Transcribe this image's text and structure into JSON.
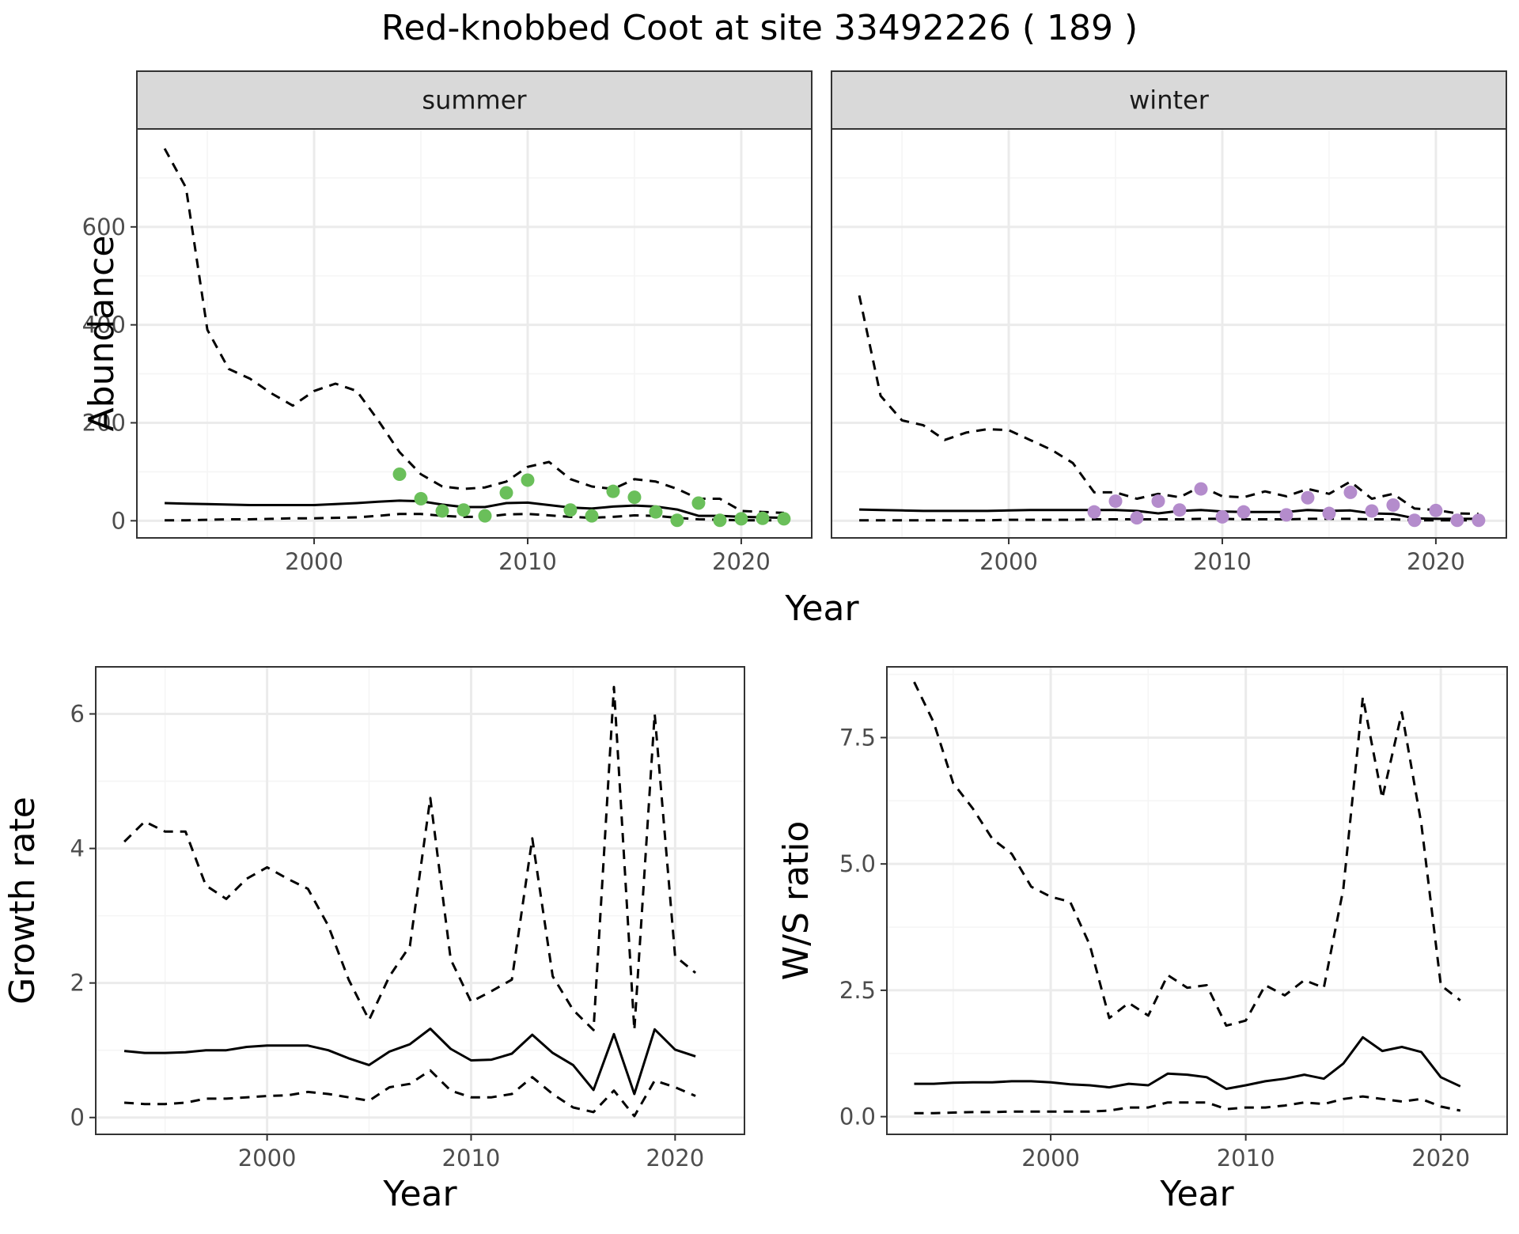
{
  "title": "Red-knobbed Coot at site 33492226 ( 189 )",
  "colors": {
    "summer_points": "#6abf5a",
    "winter_points": "#b48ccc",
    "lines": "#000000",
    "grid_major": "#ebebeb",
    "grid_minor": "#f5f5f5",
    "strip_fill": "#d9d9d9"
  },
  "chart_data": [
    {
      "type": "line",
      "panel": "summer",
      "strip_label": "summer",
      "ylabel": "Abundance",
      "xlabel": "Year",
      "xlim": [
        1991.7,
        2023.3
      ],
      "ylim": [
        -35,
        800
      ],
      "x_ticks": [
        2000,
        2010,
        2020
      ],
      "x_tick_labels": [
        "2000",
        "2010",
        "2020"
      ],
      "y_ticks": [
        0,
        200,
        400,
        600
      ],
      "y_tick_labels": [
        "0",
        "200",
        "400",
        "600"
      ],
      "grid": true,
      "series": [
        {
          "role": "estimate",
          "style": "solid",
          "x": [
            1993,
            1994,
            1995,
            1996,
            1997,
            1998,
            1999,
            2000,
            2001,
            2002,
            2003,
            2004,
            2005,
            2006,
            2007,
            2008,
            2009,
            2010,
            2011,
            2012,
            2013,
            2014,
            2015,
            2016,
            2017,
            2018,
            2019,
            2020,
            2021,
            2022
          ],
          "y": [
            36,
            35,
            34,
            33,
            32,
            32,
            32,
            32,
            34,
            36,
            39,
            41,
            40,
            33,
            28,
            28,
            36,
            37,
            32,
            27,
            25,
            29,
            31,
            29,
            23,
            10,
            10,
            8,
            7,
            6
          ]
        },
        {
          "role": "upper",
          "style": "dashed",
          "x": [
            1993,
            1994,
            1995,
            1996,
            1997,
            1998,
            1999,
            2000,
            2001,
            2002,
            2003,
            2004,
            2005,
            2006,
            2007,
            2008,
            2009,
            2010,
            2011,
            2012,
            2013,
            2014,
            2015,
            2016,
            2017,
            2018,
            2019,
            2020,
            2021,
            2022
          ],
          "y": [
            760,
            680,
            390,
            310,
            290,
            260,
            235,
            265,
            280,
            265,
            205,
            140,
            95,
            70,
            65,
            68,
            80,
            110,
            120,
            85,
            70,
            65,
            85,
            80,
            65,
            45,
            45,
            20,
            18,
            16
          ]
        },
        {
          "role": "lower",
          "style": "dashed",
          "x": [
            1993,
            1994,
            1995,
            1996,
            1997,
            1998,
            1999,
            2000,
            2001,
            2002,
            2003,
            2004,
            2005,
            2006,
            2007,
            2008,
            2009,
            2010,
            2011,
            2012,
            2013,
            2014,
            2015,
            2016,
            2017,
            2018,
            2019,
            2020,
            2021,
            2022
          ],
          "y": [
            1,
            1,
            2,
            3,
            3,
            4,
            5,
            5,
            6,
            7,
            10,
            14,
            14,
            10,
            8,
            8,
            13,
            14,
            11,
            8,
            6,
            8,
            11,
            10,
            6,
            3,
            2,
            1,
            1,
            1
          ]
        },
        {
          "role": "counts",
          "style": "points",
          "x": [
            2004,
            2005,
            2006,
            2007,
            2008,
            2009,
            2010,
            2012,
            2013,
            2014,
            2015,
            2016,
            2017,
            2018,
            2019,
            2020,
            2021,
            2022
          ],
          "y": [
            95,
            45,
            20,
            22,
            10,
            57,
            83,
            22,
            10,
            60,
            48,
            18,
            1,
            36,
            1,
            4,
            5,
            4
          ]
        }
      ]
    },
    {
      "type": "line",
      "panel": "winter",
      "strip_label": "winter",
      "ylabel": "",
      "xlabel": "Year",
      "xlim": [
        1991.7,
        2023.3
      ],
      "ylim": [
        -35,
        800
      ],
      "x_ticks": [
        2000,
        2010,
        2020
      ],
      "x_tick_labels": [
        "2000",
        "2010",
        "2020"
      ],
      "grid": true,
      "series": [
        {
          "role": "estimate",
          "style": "solid",
          "x": [
            1993,
            1994,
            1995,
            1996,
            1997,
            1998,
            1999,
            2000,
            2001,
            2002,
            2003,
            2004,
            2005,
            2006,
            2007,
            2008,
            2009,
            2010,
            2011,
            2012,
            2013,
            2014,
            2015,
            2016,
            2017,
            2018,
            2019,
            2020,
            2021,
            2022
          ],
          "y": [
            23,
            22,
            21,
            20,
            20,
            20,
            20,
            21,
            22,
            22,
            22,
            22,
            22,
            20,
            15,
            20,
            22,
            19,
            18,
            18,
            18,
            22,
            20,
            21,
            15,
            14,
            5,
            4,
            4,
            4
          ]
        },
        {
          "role": "upper",
          "style": "dashed",
          "x": [
            1993,
            1994,
            1995,
            1996,
            1997,
            1998,
            1999,
            2000,
            2001,
            2002,
            2003,
            2004,
            2005,
            2006,
            2007,
            2008,
            2009,
            2010,
            2011,
            2012,
            2013,
            2014,
            2015,
            2016,
            2017,
            2018,
            2019,
            2020,
            2021,
            2022
          ],
          "y": [
            460,
            255,
            205,
            195,
            165,
            180,
            187,
            185,
            165,
            145,
            118,
            58,
            58,
            45,
            55,
            48,
            70,
            50,
            48,
            60,
            50,
            65,
            55,
            80,
            45,
            55,
            25,
            22,
            15,
            14
          ]
        },
        {
          "role": "lower",
          "style": "dashed",
          "x": [
            1993,
            1994,
            1995,
            1996,
            1997,
            1998,
            1999,
            2000,
            2001,
            2002,
            2003,
            2004,
            2005,
            2006,
            2007,
            2008,
            2009,
            2010,
            2011,
            2012,
            2013,
            2014,
            2015,
            2016,
            2017,
            2018,
            2019,
            2020,
            2021,
            2022
          ],
          "y": [
            1,
            1,
            1,
            1,
            1,
            1,
            1,
            2,
            2,
            2,
            2,
            3,
            3,
            3,
            3,
            3,
            4,
            4,
            3,
            3,
            3,
            4,
            4,
            4,
            3,
            3,
            1,
            1,
            1,
            1
          ]
        },
        {
          "role": "counts",
          "style": "points",
          "x": [
            2004,
            2005,
            2006,
            2007,
            2008,
            2009,
            2010,
            2011,
            2013,
            2014,
            2015,
            2016,
            2017,
            2018,
            2019,
            2020,
            2021,
            2022
          ],
          "y": [
            18,
            40,
            6,
            40,
            22,
            65,
            8,
            18,
            12,
            47,
            15,
            58,
            20,
            32,
            1,
            21,
            1,
            1
          ]
        }
      ]
    },
    {
      "type": "line",
      "panel": "growth",
      "ylabel": "Growth rate",
      "xlabel": "Year",
      "xlim": [
        1991.6,
        2023.4
      ],
      "ylim": [
        -0.25,
        6.7
      ],
      "x_ticks": [
        2000,
        2010,
        2020
      ],
      "x_tick_labels": [
        "2000",
        "2010",
        "2020"
      ],
      "y_ticks": [
        0,
        2,
        4,
        6
      ],
      "y_tick_labels": [
        "0",
        "2",
        "4",
        "6"
      ],
      "grid": true,
      "series": [
        {
          "role": "estimate",
          "style": "solid",
          "x": [
            1993,
            1994,
            1995,
            1996,
            1997,
            1998,
            1999,
            2000,
            2001,
            2002,
            2003,
            2004,
            2005,
            2006,
            2007,
            2008,
            2009,
            2010,
            2011,
            2012,
            2013,
            2014,
            2015,
            2016,
            2017,
            2018,
            2019,
            2020,
            2021
          ],
          "y": [
            0.99,
            0.96,
            0.96,
            0.97,
            1.0,
            1.0,
            1.05,
            1.07,
            1.07,
            1.07,
            1.0,
            0.88,
            0.78,
            0.98,
            1.09,
            1.32,
            1.02,
            0.85,
            0.86,
            0.95,
            1.23,
            0.96,
            0.78,
            0.41,
            1.24,
            0.35,
            1.31,
            1.01,
            0.91
          ]
        },
        {
          "role": "upper",
          "style": "dashed",
          "x": [
            1993,
            1994,
            1995,
            1996,
            1997,
            1998,
            1999,
            2000,
            2001,
            2002,
            2003,
            2004,
            2005,
            2006,
            2007,
            2008,
            2009,
            2010,
            2011,
            2012,
            2013,
            2014,
            2015,
            2016,
            2017,
            2018,
            2019,
            2020,
            2021
          ],
          "y": [
            4.1,
            4.4,
            4.25,
            4.25,
            3.45,
            3.25,
            3.55,
            3.72,
            3.55,
            3.4,
            2.85,
            2.05,
            1.45,
            2.1,
            2.55,
            4.75,
            2.35,
            1.72,
            1.88,
            2.05,
            4.15,
            2.1,
            1.6,
            1.3,
            6.4,
            1.3,
            6.0,
            2.4,
            2.15
          ]
        },
        {
          "role": "lower",
          "style": "dashed",
          "x": [
            1993,
            1994,
            1995,
            1996,
            1997,
            1998,
            1999,
            2000,
            2001,
            2002,
            2003,
            2004,
            2005,
            2006,
            2007,
            2008,
            2009,
            2010,
            2011,
            2012,
            2013,
            2014,
            2015,
            2016,
            2017,
            2018,
            2019,
            2020,
            2021
          ],
          "y": [
            0.22,
            0.2,
            0.2,
            0.22,
            0.28,
            0.28,
            0.3,
            0.32,
            0.33,
            0.38,
            0.35,
            0.3,
            0.25,
            0.45,
            0.5,
            0.7,
            0.4,
            0.3,
            0.3,
            0.35,
            0.6,
            0.35,
            0.15,
            0.08,
            0.4,
            0.02,
            0.55,
            0.45,
            0.32
          ]
        }
      ]
    },
    {
      "type": "line",
      "panel": "ratio",
      "ylabel": "W/S ratio",
      "xlabel": "Year",
      "xlim": [
        1991.6,
        2023.4
      ],
      "ylim": [
        -0.35,
        8.9
      ],
      "x_ticks": [
        2000,
        2010,
        2020
      ],
      "x_tick_labels": [
        "2000",
        "2010",
        "2020"
      ],
      "y_ticks": [
        0,
        2.5,
        5,
        7.5
      ],
      "y_tick_labels": [
        "0.0",
        "2.5",
        "5.0",
        "7.5"
      ],
      "grid": true,
      "series": [
        {
          "role": "estimate",
          "style": "solid",
          "x": [
            1993,
            1994,
            1995,
            1996,
            1997,
            1998,
            1999,
            2000,
            2001,
            2002,
            2003,
            2004,
            2005,
            2006,
            2007,
            2008,
            2009,
            2010,
            2011,
            2012,
            2013,
            2014,
            2015,
            2016,
            2017,
            2018,
            2019,
            2020,
            2021
          ],
          "y": [
            0.65,
            0.65,
            0.67,
            0.68,
            0.68,
            0.7,
            0.7,
            0.68,
            0.64,
            0.62,
            0.58,
            0.65,
            0.62,
            0.85,
            0.83,
            0.78,
            0.55,
            0.62,
            0.7,
            0.75,
            0.83,
            0.75,
            1.05,
            1.57,
            1.3,
            1.38,
            1.28,
            0.78,
            0.6
          ]
        },
        {
          "role": "upper",
          "style": "dashed",
          "x": [
            1993,
            1994,
            1995,
            1996,
            1997,
            1998,
            1999,
            2000,
            2001,
            2002,
            2003,
            2004,
            2005,
            2006,
            2007,
            2008,
            2009,
            2010,
            2011,
            2012,
            2013,
            2014,
            2015,
            2016,
            2017,
            2018,
            2019,
            2020,
            2021
          ],
          "y": [
            8.6,
            7.8,
            6.6,
            6.1,
            5.5,
            5.2,
            4.55,
            4.35,
            4.25,
            3.4,
            1.95,
            2.25,
            2.0,
            2.8,
            2.55,
            2.6,
            1.8,
            1.9,
            2.6,
            2.4,
            2.7,
            2.55,
            4.5,
            8.3,
            6.3,
            8.0,
            5.8,
            2.6,
            2.3
          ]
        },
        {
          "role": "lower",
          "style": "dashed",
          "x": [
            1993,
            1994,
            1995,
            1996,
            1997,
            1998,
            1999,
            2000,
            2001,
            2002,
            2003,
            2004,
            2005,
            2006,
            2007,
            2008,
            2009,
            2010,
            2011,
            2012,
            2013,
            2014,
            2015,
            2016,
            2017,
            2018,
            2019,
            2020,
            2021
          ],
          "y": [
            0.07,
            0.07,
            0.08,
            0.09,
            0.09,
            0.1,
            0.1,
            0.1,
            0.1,
            0.1,
            0.12,
            0.18,
            0.18,
            0.28,
            0.28,
            0.28,
            0.15,
            0.18,
            0.18,
            0.22,
            0.28,
            0.25,
            0.35,
            0.4,
            0.35,
            0.3,
            0.35,
            0.2,
            0.12
          ]
        }
      ]
    }
  ]
}
